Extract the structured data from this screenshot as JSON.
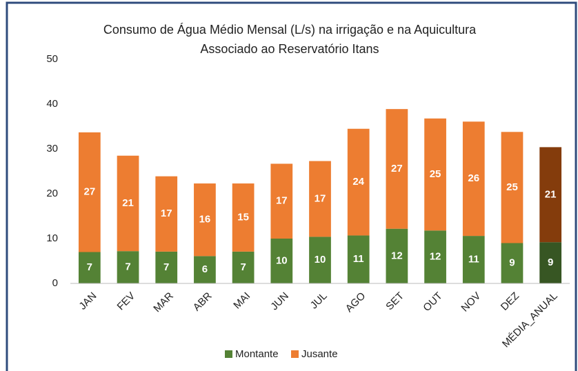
{
  "chart_data": {
    "type": "stacked_bar",
    "title": "Consumo de Água Médio Mensal (L/s) na irrigação e na Aquicultura",
    "subtitle": "Associado ao Reservatório Itans",
    "categories": [
      "JAN",
      "FEV",
      "MAR",
      "ABR",
      "MAI",
      "JUN",
      "JUL",
      "AGO",
      "SET",
      "OUT",
      "NOV",
      "DEZ",
      "MÉDIA_ANUAL"
    ],
    "series": [
      {
        "name": "Montante",
        "color": "#548235",
        "colors": [
          "#548235",
          "#548235",
          "#548235",
          "#548235",
          "#548235",
          "#548235",
          "#548235",
          "#548235",
          "#548235",
          "#548235",
          "#548235",
          "#548235",
          "#375623"
        ],
        "values": [
          7.0,
          7.2,
          7.1,
          6.1,
          7.1,
          10.0,
          10.4,
          10.7,
          12.2,
          11.8,
          10.6,
          9.0,
          9.2
        ],
        "value_labels": [
          "7",
          "7",
          "7",
          "6",
          "7",
          "10",
          "10",
          "11",
          "12",
          "12",
          "11",
          "9",
          "9"
        ]
      },
      {
        "name": "Jusante",
        "color": "#ed7d31",
        "colors": [
          "#ed7d31",
          "#ed7d31",
          "#ed7d31",
          "#ed7d31",
          "#ed7d31",
          "#ed7d31",
          "#ed7d31",
          "#ed7d31",
          "#ed7d31",
          "#ed7d31",
          "#ed7d31",
          "#ed7d31",
          "#843c0c"
        ],
        "values": [
          26.7,
          21.3,
          16.8,
          16.2,
          15.2,
          16.7,
          16.9,
          23.8,
          26.7,
          25.0,
          25.5,
          24.8,
          21.2
        ],
        "value_labels": [
          "27",
          "21",
          "17",
          "16",
          "15",
          "17",
          "17",
          "24",
          "27",
          "25",
          "26",
          "25",
          "21"
        ]
      }
    ],
    "ylim": [
      0,
      50
    ],
    "yticks": [
      0,
      10,
      20,
      30,
      40,
      50
    ],
    "grid": false,
    "legend": "bottom"
  }
}
